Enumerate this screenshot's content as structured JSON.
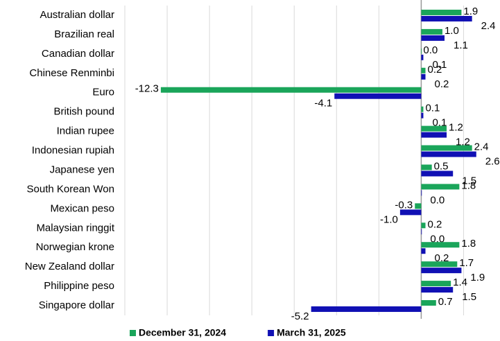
{
  "chart_data": {
    "type": "hbar",
    "categories": [
      "Australian dollar",
      "Brazilian real",
      "Canadian dollar",
      "Chinese Renminbi",
      "Euro",
      "British pound",
      "Indian rupee",
      "Indonesian rupiah",
      "Japanese yen",
      "South Korean Won",
      "Mexican peso",
      "Malaysian ringgit",
      "Norwegian krone",
      "New Zealand dollar",
      "Philippine peso",
      "Singapore dollar"
    ],
    "series": [
      {
        "name": "December 31, 2024",
        "color": "#1aa55a",
        "values": [
          1.9,
          1.0,
          0.0,
          0.2,
          -12.3,
          0.1,
          1.2,
          2.4,
          0.5,
          1.8,
          -0.3,
          0.2,
          1.8,
          1.7,
          1.4,
          0.7
        ],
        "value_labels": [
          "1.9",
          "1.0",
          "0.0",
          "0.2",
          "-12.3",
          "0.1",
          "1.2",
          "2.4",
          "0.5",
          "1.8",
          "-0.3",
          "0.2",
          "1.8",
          "1.7",
          "1.4",
          "0.7"
        ]
      },
      {
        "name": "March 31, 2025",
        "color": "#1010b4",
        "values": [
          2.4,
          1.1,
          0.1,
          0.2,
          -4.1,
          0.1,
          1.2,
          2.6,
          1.5,
          0.0,
          -1.0,
          0.0,
          0.2,
          1.9,
          1.5,
          -5.2
        ],
        "value_labels": [
          "2.4",
          "1.1",
          "0.1",
          "0.2",
          "-4.1",
          "0.1",
          "1.2",
          "2.6",
          "1.5",
          "0.0",
          "-1.0",
          "0.0",
          "0.2",
          "1.9",
          "1.5",
          "-5.2"
        ]
      }
    ],
    "xlim": [
      -14,
      3
    ],
    "xticks": [
      -14,
      -12,
      -10,
      -8,
      -6,
      -4,
      -2,
      0,
      2
    ],
    "grid": true,
    "legend": "bottom"
  }
}
